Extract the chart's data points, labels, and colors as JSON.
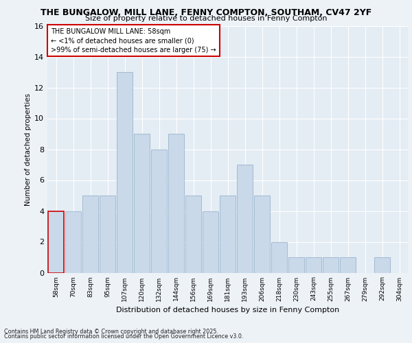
{
  "title1": "THE BUNGALOW, MILL LANE, FENNY COMPTON, SOUTHAM, CV47 2YF",
  "title2": "Size of property relative to detached houses in Fenny Compton",
  "xlabel": "Distribution of detached houses by size in Fenny Compton",
  "ylabel": "Number of detached properties",
  "categories": [
    "58sqm",
    "70sqm",
    "83sqm",
    "95sqm",
    "107sqm",
    "120sqm",
    "132sqm",
    "144sqm",
    "156sqm",
    "169sqm",
    "181sqm",
    "193sqm",
    "206sqm",
    "218sqm",
    "230sqm",
    "243sqm",
    "255sqm",
    "267sqm",
    "279sqm",
    "292sqm",
    "304sqm"
  ],
  "values": [
    4,
    4,
    5,
    5,
    13,
    9,
    8,
    9,
    5,
    4,
    5,
    7,
    5,
    2,
    1,
    1,
    1,
    1,
    0,
    1,
    0
  ],
  "bar_color": "#c9d9ea",
  "bar_edge_color": "#9ab4cc",
  "highlight_edge_color": "#cc0000",
  "annotation_box_text": "THE BUNGALOW MILL LANE: 58sqm\n← <1% of detached houses are smaller (0)\n>99% of semi-detached houses are larger (75) →",
  "annotation_box_color": "#ffffff",
  "annotation_edge_color": "#cc0000",
  "ylim": [
    0,
    16
  ],
  "yticks": [
    0,
    2,
    4,
    6,
    8,
    10,
    12,
    14,
    16
  ],
  "footnote1": "Contains HM Land Registry data © Crown copyright and database right 2025.",
  "footnote2": "Contains public sector information licensed under the Open Government Licence v3.0.",
  "bg_color": "#edf2f7",
  "plot_bg_color": "#e4ecf4"
}
